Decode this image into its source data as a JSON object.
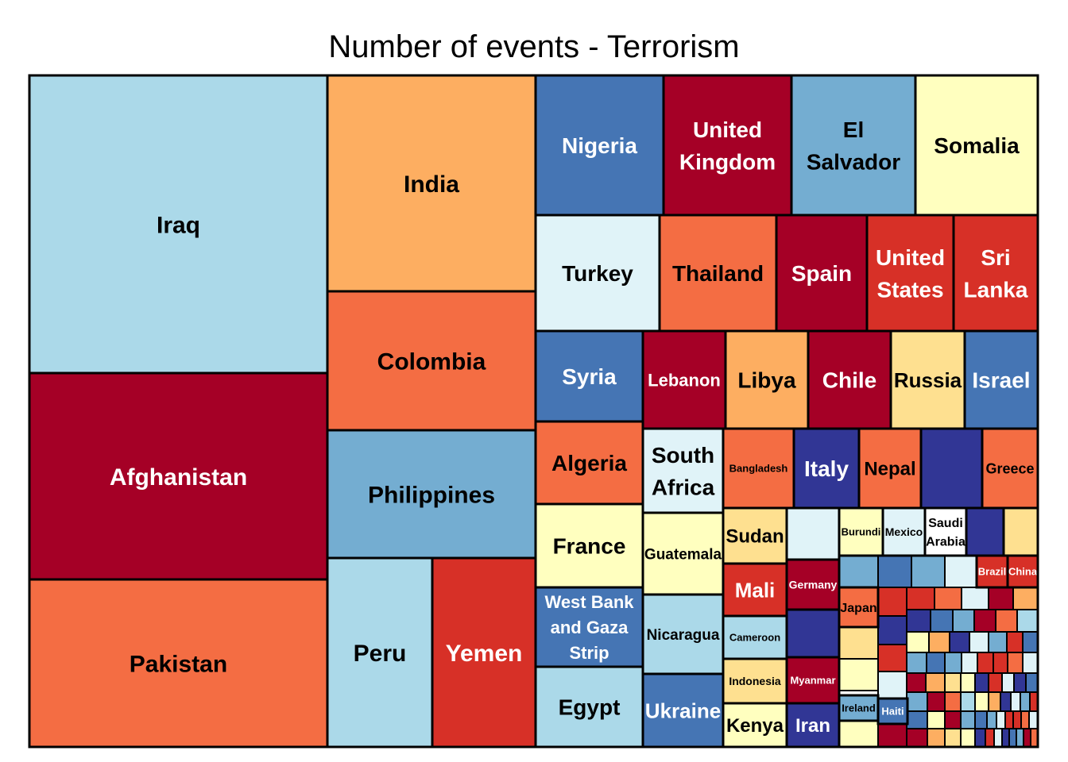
{
  "chart_data": {
    "type": "treemap",
    "title": "Number of events - Terrorism",
    "palette": {
      "dark_red": "#a50026",
      "red": "#d73027",
      "orange_red": "#f46d43",
      "orange": "#fdae61",
      "light_orange": "#fee090",
      "cream": "#ffffbf",
      "pale_blue": "#e0f3f8",
      "light_blue": "#abd9e9",
      "mid_blue": "#74add1",
      "blue": "#4575b4",
      "navy": "#313695"
    },
    "tiles": [
      {
        "label": "Iraq",
        "color": "#abd9e9",
        "text_color": "#000000"
      },
      {
        "label": "Afghanistan",
        "color": "#a50026",
        "text_color": "#ffffff"
      },
      {
        "label": "Pakistan",
        "color": "#f46d43",
        "text_color": "#000000"
      },
      {
        "label": "India",
        "color": "#fdae61",
        "text_color": "#000000"
      },
      {
        "label": "Colombia",
        "color": "#f46d43",
        "text_color": "#000000"
      },
      {
        "label": "Philippines",
        "color": "#74add1",
        "text_color": "#000000"
      },
      {
        "label": "Peru",
        "color": "#abd9e9",
        "text_color": "#000000"
      },
      {
        "label": "Yemen",
        "color": "#d73027",
        "text_color": "#ffffff"
      },
      {
        "label": "Nigeria",
        "color": "#4575b4",
        "text_color": "#ffffff"
      },
      {
        "label": "United\nKingdom",
        "color": "#a50026",
        "text_color": "#ffffff"
      },
      {
        "label": "El\nSalvador",
        "color": "#74add1",
        "text_color": "#000000"
      },
      {
        "label": "Somalia",
        "color": "#ffffbf",
        "text_color": "#000000"
      },
      {
        "label": "Turkey",
        "color": "#e0f3f8",
        "text_color": "#000000"
      },
      {
        "label": "Thailand",
        "color": "#f46d43",
        "text_color": "#000000"
      },
      {
        "label": "Spain",
        "color": "#a50026",
        "text_color": "#ffffff"
      },
      {
        "label": "United\nStates",
        "color": "#d73027",
        "text_color": "#ffffff"
      },
      {
        "label": "Sri\nLanka",
        "color": "#d73027",
        "text_color": "#ffffff"
      },
      {
        "label": "Syria",
        "color": "#4575b4",
        "text_color": "#ffffff"
      },
      {
        "label": "Lebanon",
        "color": "#a50026",
        "text_color": "#ffffff"
      },
      {
        "label": "Libya",
        "color": "#fdae61",
        "text_color": "#000000"
      },
      {
        "label": "Chile",
        "color": "#a50026",
        "text_color": "#ffffff"
      },
      {
        "label": "Russia",
        "color": "#fee090",
        "text_color": "#000000"
      },
      {
        "label": "Israel",
        "color": "#4575b4",
        "text_color": "#ffffff"
      },
      {
        "label": "Algeria",
        "color": "#f46d43",
        "text_color": "#000000"
      },
      {
        "label": "South\nAfrica",
        "color": "#e0f3f8",
        "text_color": "#000000"
      },
      {
        "label": "Bangladesh",
        "color": "#f46d43",
        "text_color": "#000000"
      },
      {
        "label": "Italy",
        "color": "#313695",
        "text_color": "#ffffff"
      },
      {
        "label": "Nepal",
        "color": "#f46d43",
        "text_color": "#000000"
      },
      {
        "label": "",
        "color": "#313695",
        "text_color": "#ffffff"
      },
      {
        "label": "Greece",
        "color": "#f46d43",
        "text_color": "#000000"
      },
      {
        "label": "France",
        "color": "#ffffbf",
        "text_color": "#000000"
      },
      {
        "label": "Guatemala",
        "color": "#ffffbf",
        "text_color": "#000000"
      },
      {
        "label": "Sudan",
        "color": "#fee090",
        "text_color": "#000000"
      },
      {
        "label": "",
        "color": "#e0f3f8",
        "text_color": "#000000"
      },
      {
        "label": "Burundi",
        "color": "#ffffbf",
        "text_color": "#000000"
      },
      {
        "label": "Mexico",
        "color": "#e0f3f8",
        "text_color": "#000000"
      },
      {
        "label": "Saudi\nArabia",
        "color": "#ffffff",
        "text_color": "#000000"
      },
      {
        "label": "",
        "color": "#313695",
        "text_color": "#ffffff"
      },
      {
        "label": "",
        "color": "#fee090",
        "text_color": "#000000"
      },
      {
        "label": "West Bank\nand Gaza\nStrip",
        "color": "#4575b4",
        "text_color": "#ffffff"
      },
      {
        "label": "Nicaragua",
        "color": "#abd9e9",
        "text_color": "#000000"
      },
      {
        "label": "Mali",
        "color": "#d73027",
        "text_color": "#ffffff"
      },
      {
        "label": "Germany",
        "color": "#a50026",
        "text_color": "#ffffff"
      },
      {
        "label": "Cameroon",
        "color": "#abd9e9",
        "text_color": "#000000"
      },
      {
        "label": "",
        "color": "#313695",
        "text_color": "#ffffff"
      },
      {
        "label": "Egypt",
        "color": "#abd9e9",
        "text_color": "#000000"
      },
      {
        "label": "Ukraine",
        "color": "#4575b4",
        "text_color": "#ffffff"
      },
      {
        "label": "Indonesia",
        "color": "#fee090",
        "text_color": "#000000"
      },
      {
        "label": "Myanmar",
        "color": "#a50026",
        "text_color": "#ffffff"
      },
      {
        "label": "Kenya",
        "color": "#ffffbf",
        "text_color": "#000000"
      },
      {
        "label": "Iran",
        "color": "#313695",
        "text_color": "#ffffff"
      },
      {
        "label": "Brazil",
        "color": "#d73027",
        "text_color": "#ffffff"
      },
      {
        "label": "China",
        "color": "#d73027",
        "text_color": "#ffffff"
      },
      {
        "label": "Japan",
        "color": "#f46d43",
        "text_color": "#000000"
      },
      {
        "label": "Ireland",
        "color": "#74add1",
        "text_color": "#000000"
      },
      {
        "label": "Haiti",
        "color": "#4575b4",
        "text_color": "#ffffff"
      }
    ],
    "small_tile_colors": [
      "#74add1",
      "#4575b4",
      "#74add1",
      "#e0f3f8",
      "#d73027",
      "#d73027",
      "#f46d43",
      "#e0f3f8",
      "#a50026",
      "#fdae61",
      "#fee090",
      "#ffffbf",
      "#313695",
      "#d73027",
      "#e0f3f8",
      "#313695",
      "#4575b4",
      "#74add1",
      "#a50026",
      "#f46d43",
      "#abd9e9",
      "#ffffbf",
      "#fdae61",
      "#313695",
      "#e0f3f8",
      "#74add1",
      "#d73027",
      "#4575b4",
      "#ffffbf",
      "#a50026"
    ]
  }
}
